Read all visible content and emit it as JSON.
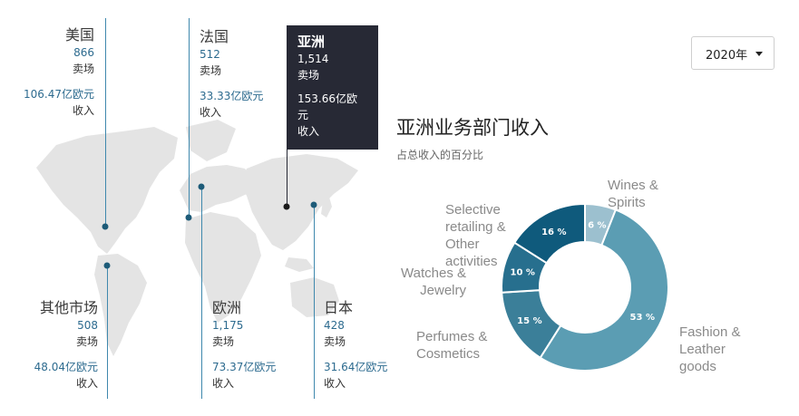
{
  "regions": [
    {
      "id": "usa",
      "name": "美国",
      "stores": "866",
      "stores_label": "卖场",
      "revenue": "106.47亿欧元",
      "revenue_label": "收入"
    },
    {
      "id": "france",
      "name": "法国",
      "stores": "512",
      "stores_label": "卖场",
      "revenue": "33.33亿欧元",
      "revenue_label": "收入"
    },
    {
      "id": "other",
      "name": "其他市场",
      "stores": "508",
      "stores_label": "卖场",
      "revenue": "48.04亿欧元",
      "revenue_label": "收入"
    },
    {
      "id": "europe",
      "name": "欧洲",
      "stores": "1,175",
      "stores_label": "卖场",
      "revenue": "73.37亿欧元",
      "revenue_label": "收入"
    },
    {
      "id": "japan",
      "name": "日本",
      "stores": "428",
      "stores_label": "卖场",
      "revenue": "31.64亿欧元",
      "revenue_label": "收入"
    }
  ],
  "tooltip": {
    "name": "亚洲",
    "stores": "1,514",
    "stores_label": "卖场",
    "revenue_line1": "153.66亿欧",
    "revenue_line2": "元",
    "revenue_label": "收入"
  },
  "year_select": {
    "value": "2020年"
  },
  "donut": {
    "title": "亚洲业务部门收入",
    "subtitle": "占总收入的百分比"
  },
  "chart_data": {
    "type": "pie",
    "donut": true,
    "title": "亚洲业务部门收入",
    "subtitle": "占总收入的百分比",
    "categories": [
      "Wines & Spirits",
      "Fashion & Leather goods",
      "Perfumes & Cosmetics",
      "Watches & Jewelry",
      "Selective retailing & Other activities"
    ],
    "values": [
      6,
      53,
      15,
      10,
      16
    ],
    "value_labels": [
      "6 %",
      "53 %",
      "15 %",
      "10 %",
      "16 %"
    ],
    "colors": [
      "#9cc0cf",
      "#5b9db3",
      "#3b7f99",
      "#276f8e",
      "#0f5a7c"
    ],
    "label_lines": [
      [
        "Wines &",
        "Spirits"
      ],
      [
        "Fashion &",
        "Leather",
        "goods"
      ],
      [
        "Perfumes &",
        "Cosmetics"
      ],
      [
        "Watches &",
        "Jewelry"
      ],
      [
        "Selective",
        "retailing &",
        "Other",
        "activities"
      ]
    ]
  },
  "colors": {
    "accent": "#2d6b8f",
    "tooltip_bg": "#272935",
    "map_land": "#e4e4e4",
    "marker": "#1d5b78"
  }
}
